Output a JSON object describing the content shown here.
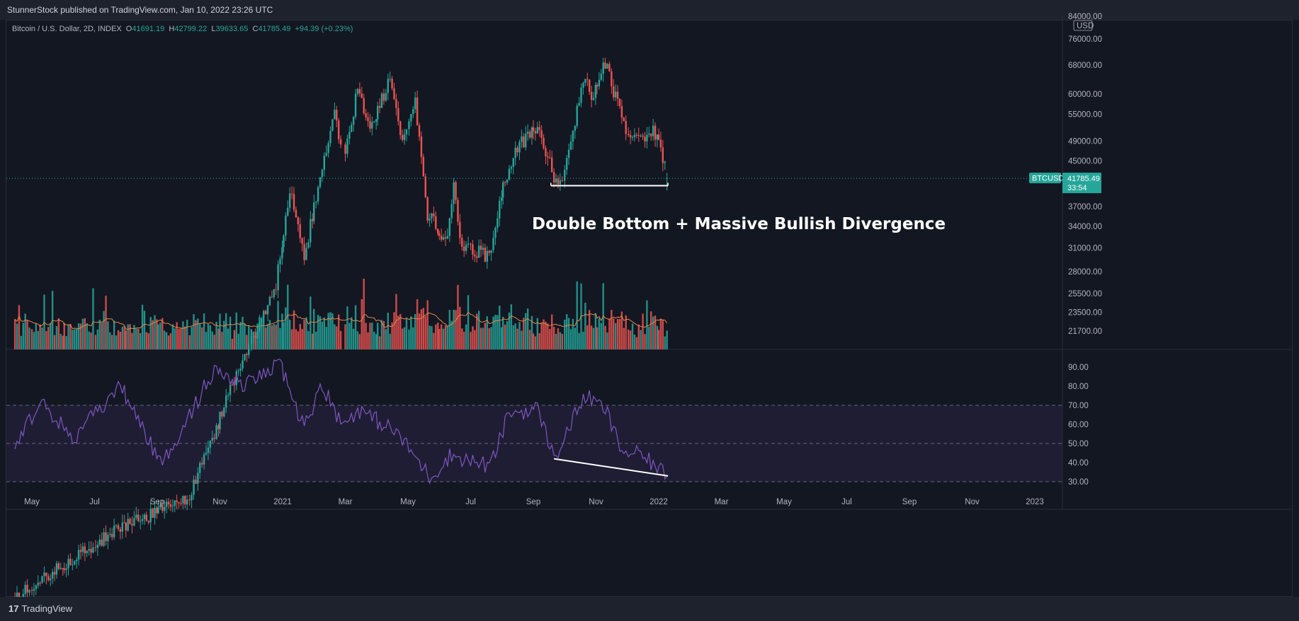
{
  "header": {
    "publisher_line": "StunnerStock published on TradingView.com, Jan 10, 2022 23:26 UTC"
  },
  "legend": {
    "symbol": "Bitcoin / U.S. Dollar, 2D, INDEX",
    "open_label": "O",
    "open": "41691.19",
    "high_label": "H",
    "high": "42799.22",
    "low_label": "L",
    "low": "39633.65",
    "close_label": "C",
    "close": "41785.49",
    "change": "+94.39 (+0.23%)"
  },
  "price_axis": {
    "currency": "USD",
    "top_partial_label": "84000.00",
    "ticks": [
      "76000.00",
      "68000.00",
      "60000.00",
      "55000.00",
      "49000.00",
      "45000.00",
      "37000.00",
      "34000.00",
      "31000.00",
      "28000.00",
      "25500.00",
      "23500.00",
      "21700.00"
    ]
  },
  "current_price": {
    "symbol_tag": "BTCUSD",
    "price": "41785.49",
    "countdown": "33:54"
  },
  "annotation": {
    "text": "Double Bottom + Massive Bullish Divergence"
  },
  "rsi_axis": {
    "ticks": [
      "90.00",
      "80.00",
      "70.00",
      "60.00",
      "50.00",
      "40.00",
      "30.00"
    ]
  },
  "time_axis": {
    "labels": [
      "May",
      "Jul",
      "Sep",
      "Nov",
      "2021",
      "Mar",
      "May",
      "Jul",
      "Sep",
      "Nov",
      "2022",
      "Mar",
      "May",
      "Jul",
      "Sep",
      "Nov",
      "2023"
    ]
  },
  "footer": {
    "mark": "17",
    "brand": "TradingView"
  },
  "colors": {
    "up": "#26a69a",
    "down": "#ef5350",
    "rsi_line": "#7e57c2",
    "rsi_band": "#1f1d33",
    "volume_ma": "#e0894a",
    "background": "#131722"
  },
  "chart_data": [
    {
      "type": "candlestick",
      "title": "Bitcoin / U.S. Dollar, 2D, INDEX",
      "ylabel": "USD",
      "scale": "log",
      "ylim": [
        19500,
        86000
      ],
      "x_range": [
        "2020-04-15",
        "2022-01-10"
      ],
      "series_key_points": [
        [
          "2020-04-15",
          6900
        ],
        [
          "2020-07-20",
          9200
        ],
        [
          "2020-10-01",
          10600
        ],
        [
          "2020-11-20",
          18500
        ],
        [
          "2020-12-25",
          26500
        ],
        [
          "2021-01-08",
          40000
        ],
        [
          "2021-01-22",
          30000
        ],
        [
          "2021-02-10",
          45000
        ],
        [
          "2021-02-21",
          56500
        ],
        [
          "2021-02-28",
          45500
        ],
        [
          "2021-03-13",
          61000
        ],
        [
          "2021-03-25",
          51000
        ],
        [
          "2021-04-14",
          64500
        ],
        [
          "2021-04-25",
          48500
        ],
        [
          "2021-05-08",
          59000
        ],
        [
          "2021-05-19",
          36000
        ],
        [
          "2021-06-08",
          32000
        ],
        [
          "2021-06-15",
          40000
        ],
        [
          "2021-06-22",
          31500
        ],
        [
          "2021-07-20",
          29800
        ],
        [
          "2021-08-01",
          40000
        ],
        [
          "2021-08-14",
          47500
        ],
        [
          "2021-09-06",
          52000
        ],
        [
          "2021-09-21",
          42000
        ],
        [
          "2021-09-29",
          41000
        ],
        [
          "2021-10-20",
          65500
        ],
        [
          "2021-10-28",
          58500
        ],
        [
          "2021-11-10",
          68700
        ],
        [
          "2021-11-26",
          54000
        ],
        [
          "2021-12-04",
          48500
        ],
        [
          "2021-12-12",
          49500
        ],
        [
          "2021-12-27",
          51500
        ],
        [
          "2022-01-04",
          46000
        ],
        [
          "2022-01-10",
          41785.49
        ]
      ],
      "last": {
        "open": 41691.19,
        "high": 42799.22,
        "low": 39633.65,
        "close": 41785.49
      },
      "double_bottom_level": 40500
    },
    {
      "type": "bar",
      "title": "Volume",
      "overlay": "volume moving average"
    },
    {
      "type": "line",
      "title": "RSI",
      "ylim": [
        27,
        95
      ],
      "bands": [
        30,
        50,
        70
      ],
      "key_points": [
        [
          "2020-04-15",
          50
        ],
        [
          "2020-05-10",
          72
        ],
        [
          "2020-06-10",
          52
        ],
        [
          "2020-07-27",
          80
        ],
        [
          "2020-09-05",
          38
        ],
        [
          "2020-10-25",
          88
        ],
        [
          "2020-11-25",
          80
        ],
        [
          "2020-12-29",
          92
        ],
        [
          "2021-01-22",
          58
        ],
        [
          "2021-02-08",
          82
        ],
        [
          "2021-02-28",
          60
        ],
        [
          "2021-03-13",
          68
        ],
        [
          "2021-04-20",
          56
        ],
        [
          "2021-05-23",
          32
        ],
        [
          "2021-06-12",
          44
        ],
        [
          "2021-07-20",
          38
        ],
        [
          "2021-08-08",
          66
        ],
        [
          "2021-09-06",
          68
        ],
        [
          "2021-09-21",
          42
        ],
        [
          "2021-10-20",
          75
        ],
        [
          "2021-11-10",
          68
        ],
        [
          "2021-11-26",
          46
        ],
        [
          "2021-12-14",
          44
        ],
        [
          "2022-01-10",
          33
        ]
      ],
      "divergence_line": [
        [
          "2021-09-21",
          42
        ],
        [
          "2022-01-10",
          33
        ]
      ]
    }
  ]
}
